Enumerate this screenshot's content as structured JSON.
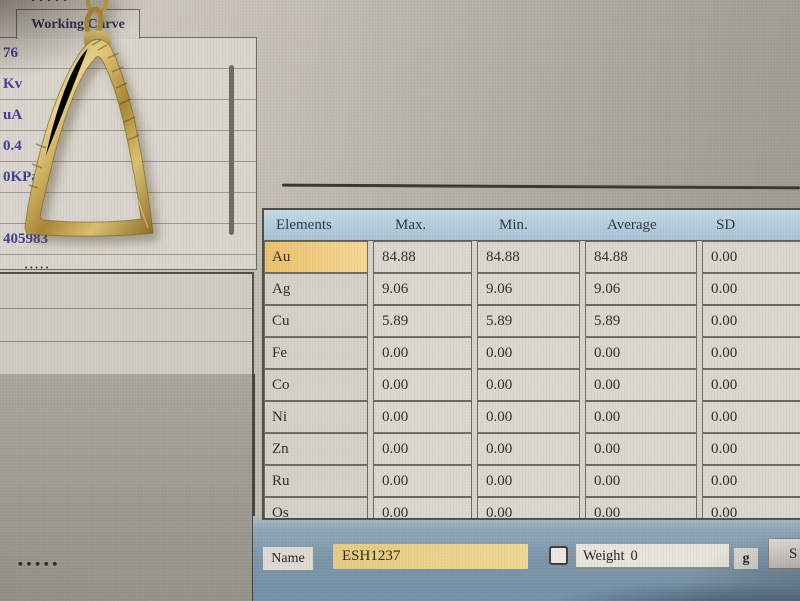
{
  "left_panel": {
    "tab_label": "Working Curve",
    "parameters": [
      "76",
      "Kv",
      "uA",
      "0.4",
      "0KPa",
      "",
      "405983"
    ]
  },
  "results_table": {
    "columns": [
      "Elements",
      "Max.",
      "Min.",
      "Average",
      "SD"
    ],
    "rows": [
      {
        "element": "Au",
        "max": "84.88",
        "min": "84.88",
        "average": "84.88",
        "sd": "0.00",
        "highlight": true
      },
      {
        "element": "Ag",
        "max": "9.06",
        "min": "9.06",
        "average": "9.06",
        "sd": "0.00",
        "highlight": false
      },
      {
        "element": "Cu",
        "max": "5.89",
        "min": "5.89",
        "average": "5.89",
        "sd": "0.00",
        "highlight": false
      },
      {
        "element": "Fe",
        "max": "0.00",
        "min": "0.00",
        "average": "0.00",
        "sd": "0.00",
        "highlight": false
      },
      {
        "element": "Co",
        "max": "0.00",
        "min": "0.00",
        "average": "0.00",
        "sd": "0.00",
        "highlight": false
      },
      {
        "element": "Ni",
        "max": "0.00",
        "min": "0.00",
        "average": "0.00",
        "sd": "0.00",
        "highlight": false
      },
      {
        "element": "Zn",
        "max": "0.00",
        "min": "0.00",
        "average": "0.00",
        "sd": "0.00",
        "highlight": false
      },
      {
        "element": "Ru",
        "max": "0.00",
        "min": "0.00",
        "average": "0.00",
        "sd": "0.00",
        "highlight": false
      },
      {
        "element": "Os",
        "max": "0.00",
        "min": "0.00",
        "average": "0.00",
        "sd": "0.00",
        "highlight": false
      }
    ]
  },
  "sample_bar": {
    "name_label": "Name",
    "name_value": "ESH1237",
    "weight_label": "Weight",
    "weight_value": "0",
    "weight_checked": false,
    "unit_label": "g",
    "partial_button_label": "S"
  },
  "decorations": {
    "top_dots": "•••••",
    "mid_dots": "•••••",
    "bottom_dots": "•••••",
    "physical_object": "gold pendant hanging in front of screen"
  },
  "colors": {
    "header_blue": "#b5cddd",
    "highlight_orange": "#eec377",
    "name_input_yellow": "#ead188",
    "parameter_text_blue": "#3b3b9c",
    "bottom_bar_blue": "#7b95a9"
  }
}
